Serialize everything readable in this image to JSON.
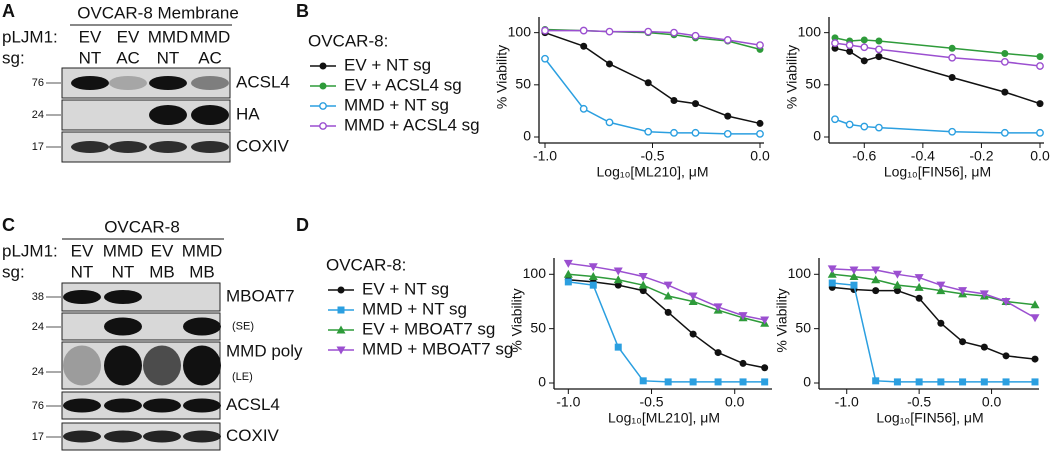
{
  "panel_a": {
    "letter": "A",
    "title": "OVCAR-8 Membrane",
    "row_labels": [
      "pLJM1:",
      "sg:"
    ],
    "columns": [
      {
        "top": "EV",
        "bottom": "NT",
        "color": "#111111"
      },
      {
        "top": "EV",
        "bottom": "AC",
        "color": "#2e9b3a"
      },
      {
        "top": "MMD",
        "bottom": "NT",
        "color": "#2b8fd6"
      },
      {
        "top": "MMD",
        "bottom": "AC",
        "color": "#8a3fc0"
      }
    ],
    "rows": [
      {
        "marker": "76",
        "label": "ACSL4"
      },
      {
        "marker": "24",
        "label": "HA"
      },
      {
        "marker": "17",
        "label": "COXIV"
      }
    ]
  },
  "panel_b": {
    "letter": "B"
  },
  "panel_c": {
    "letter": "C",
    "title": "OVCAR-8",
    "row_labels": [
      "pLJM1:",
      "sg:"
    ],
    "columns": [
      {
        "top": "EV",
        "bottom": "NT",
        "color": "#111111"
      },
      {
        "top": "MMD",
        "bottom": "NT",
        "color": "#2b8fd6"
      },
      {
        "top": "EV",
        "bottom": "MB",
        "color": "#2e9b3a"
      },
      {
        "top": "MMD",
        "bottom": "MB",
        "color": "#8a3fc0"
      }
    ],
    "rows": [
      {
        "marker": "38",
        "label": "MBOAT7"
      },
      {
        "marker": "24",
        "label": "(SE)"
      },
      {
        "marker": "24",
        "label": "MMD poly",
        "sublabel": "(LE)"
      },
      {
        "marker": "76",
        "label": "ACSL4"
      },
      {
        "marker": "17",
        "label": "COXIV"
      }
    ]
  },
  "panel_d": {
    "letter": "D"
  },
  "chart_data": [
    {
      "type": "line",
      "legend_title": "OVCAR-8:",
      "ylabel": "% Viability",
      "xlabel": "Log₁₀[ML210], μM",
      "x": [
        -1.0,
        -0.82,
        -0.7,
        -0.52,
        -0.4,
        -0.3,
        -0.15,
        0.0
      ],
      "xlim": [
        -1.0,
        0.0
      ],
      "xticks": [
        {
          "value": -1,
          "label": "-1.0"
        },
        -0.5,
        {
          "value": 0,
          "label": "0.0"
        }
      ],
      "ylim": [
        0,
        115
      ],
      "yticks": [
        0,
        50,
        100
      ],
      "series": [
        {
          "name": "EV + NT sg",
          "color": "#111111",
          "marker": "circle",
          "values": [
            100,
            87,
            70,
            52,
            35,
            32,
            20,
            13
          ]
        },
        {
          "name": "EV + ACSL4 sg",
          "color": "#2e9b3a",
          "marker": "circle",
          "values": [
            103,
            102,
            101,
            100,
            98,
            95,
            92,
            84
          ]
        },
        {
          "name": "MMD + NT sg",
          "color": "#2b9fe0",
          "marker": "circle-open",
          "values": [
            75,
            27,
            14,
            5,
            4,
            4,
            3,
            3
          ]
        },
        {
          "name": "MMD + ACSL4 sg",
          "color": "#9b4fd0",
          "marker": "circle-open",
          "values": [
            102,
            102,
            101,
            101,
            100,
            97,
            93,
            88
          ]
        }
      ]
    },
    {
      "type": "line",
      "ylabel": "% Viability",
      "xlabel": "Log₁₀[FIN56], μM",
      "x": [
        -0.7,
        -0.65,
        -0.6,
        -0.55,
        -0.3,
        -0.12,
        0.0
      ],
      "xlim": [
        -0.7,
        0.0
      ],
      "xticks": [
        -0.6,
        -0.4,
        -0.2,
        {
          "value": 0,
          "label": "0.0"
        }
      ],
      "ylim": [
        0,
        115
      ],
      "yticks": [
        0,
        50,
        100
      ],
      "series": [
        {
          "color": "#111111",
          "marker": "circle",
          "values": [
            85,
            82,
            73,
            77,
            57,
            43,
            32
          ]
        },
        {
          "color": "#2e9b3a",
          "marker": "circle",
          "values": [
            95,
            92,
            93,
            92,
            85,
            80,
            77
          ]
        },
        {
          "color": "#2b9fe0",
          "marker": "circle-open",
          "values": [
            17,
            12,
            10,
            9,
            5,
            4,
            4
          ]
        },
        {
          "color": "#9b4fd0",
          "marker": "circle-open",
          "values": [
            90,
            88,
            86,
            84,
            76,
            72,
            68
          ]
        }
      ]
    },
    {
      "type": "line",
      "legend_title": "OVCAR-8:",
      "ylabel": "% Viability",
      "xlabel": "Log₁₀[ML210], μM",
      "x": [
        -1.0,
        -0.85,
        -0.7,
        -0.55,
        -0.4,
        -0.25,
        -0.1,
        0.05,
        0.18
      ],
      "xlim": [
        -1.05,
        0.2
      ],
      "xticks": [
        {
          "value": -1,
          "label": "-1.0"
        },
        -0.5,
        {
          "value": 0,
          "label": "0.0"
        }
      ],
      "ylim": [
        0,
        115
      ],
      "yticks": [
        0,
        50,
        100
      ],
      "series": [
        {
          "name": "EV + NT sg",
          "color": "#111111",
          "marker": "circle",
          "values": [
            95,
            93,
            90,
            85,
            65,
            45,
            28,
            18,
            14
          ]
        },
        {
          "name": "MMD + NT sg",
          "color": "#2b9fe0",
          "marker": "square",
          "values": [
            93,
            90,
            33,
            2,
            1,
            1,
            1,
            1,
            1
          ]
        },
        {
          "name": "EV + MBOAT7 sg",
          "color": "#2e9b3a",
          "marker": "triangle",
          "values": [
            100,
            98,
            95,
            90,
            80,
            75,
            67,
            60,
            55
          ]
        },
        {
          "name": "MMD + MBOAT7 sg",
          "color": "#9b4fd0",
          "marker": "triangle-down",
          "values": [
            110,
            107,
            103,
            98,
            90,
            80,
            70,
            62,
            58
          ]
        }
      ]
    },
    {
      "type": "line",
      "ylabel": "% Viability",
      "xlabel": "Log₁₀[FIN56], μM",
      "x": [
        -1.1,
        -0.95,
        -0.8,
        -0.65,
        -0.5,
        -0.35,
        -0.2,
        -0.05,
        0.1,
        0.3
      ],
      "xlim": [
        -1.15,
        0.3
      ],
      "xticks": [
        {
          "value": -1,
          "label": "-1.0"
        },
        -0.5,
        {
          "value": 0,
          "label": "0.0"
        }
      ],
      "ylim": [
        0,
        115
      ],
      "yticks": [
        0,
        50,
        100
      ],
      "series": [
        {
          "color": "#111111",
          "marker": "circle",
          "values": [
            88,
            86,
            85,
            85,
            78,
            55,
            38,
            33,
            25,
            22
          ]
        },
        {
          "color": "#2b9fe0",
          "marker": "square",
          "values": [
            92,
            90,
            2,
            1,
            1,
            1,
            1,
            1,
            1,
            1
          ]
        },
        {
          "color": "#2e9b3a",
          "marker": "triangle",
          "values": [
            100,
            98,
            95,
            90,
            88,
            85,
            82,
            80,
            75,
            72
          ]
        },
        {
          "color": "#9b4fd0",
          "marker": "triangle-down",
          "values": [
            105,
            104,
            104,
            100,
            97,
            90,
            85,
            82,
            75,
            60
          ]
        }
      ]
    }
  ]
}
